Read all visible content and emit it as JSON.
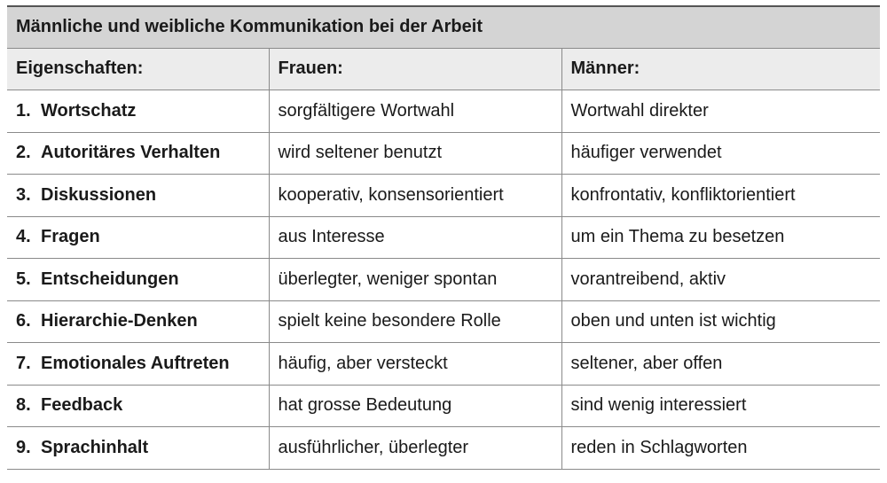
{
  "title": "Männliche und weibliche Kommunikation bei der Arbeit",
  "headers": [
    "Eigenschaften:",
    "Frauen:",
    "Männer:"
  ],
  "rows": [
    {
      "num": "1.",
      "property": "Wortschatz",
      "women": "sorgfältigere Wortwahl",
      "men": "Wortwahl direkter"
    },
    {
      "num": "2.",
      "property": "Autoritäres Verhalten",
      "women": "wird seltener benutzt",
      "men": "häufiger verwendet"
    },
    {
      "num": "3.",
      "property": "Diskussionen",
      "women": "kooperativ, konsensorientiert",
      "men": "konfrontativ, konfliktorientiert"
    },
    {
      "num": "4.",
      "property": "Fragen",
      "women": "aus Interesse",
      "men": "um ein Thema zu besetzen"
    },
    {
      "num": "5.",
      "property": "Entscheidungen",
      "women": "überlegter, weniger spontan",
      "men": "vorantreibend, aktiv"
    },
    {
      "num": "6.",
      "property": "Hierarchie-Denken",
      "women": "spielt keine besondere Rolle",
      "men": "oben und unten ist wichtig"
    },
    {
      "num": "7.",
      "property": "Emotionales Auftreten",
      "women": "häufig, aber versteckt",
      "men": "seltener, aber offen"
    },
    {
      "num": "8.",
      "property": "Feedback",
      "women": "hat grosse Bedeutung",
      "men": "sind wenig interessiert"
    },
    {
      "num": "9.",
      "property": "Sprachinhalt",
      "women": "ausführlicher, überlegter",
      "men": "reden in Schlagworten"
    }
  ]
}
